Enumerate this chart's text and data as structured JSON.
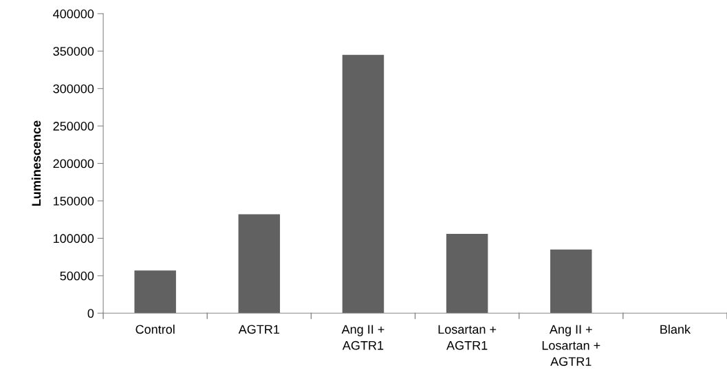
{
  "chart_data": {
    "type": "bar",
    "ylabel": "Luminescence",
    "categories": [
      "Control",
      "AGTR1",
      "Ang II +\nAGTR1",
      "Losartan +\nAGTR1",
      "Ang II +\nLosartan +\nAGTR1",
      "Blank"
    ],
    "values": [
      57000,
      132000,
      345000,
      106000,
      85000,
      0
    ],
    "color": "#616161",
    "ylim": [
      0,
      400000
    ],
    "yticks": [
      0,
      50000,
      100000,
      150000,
      200000,
      250000,
      300000,
      350000,
      400000
    ],
    "grid": false
  }
}
